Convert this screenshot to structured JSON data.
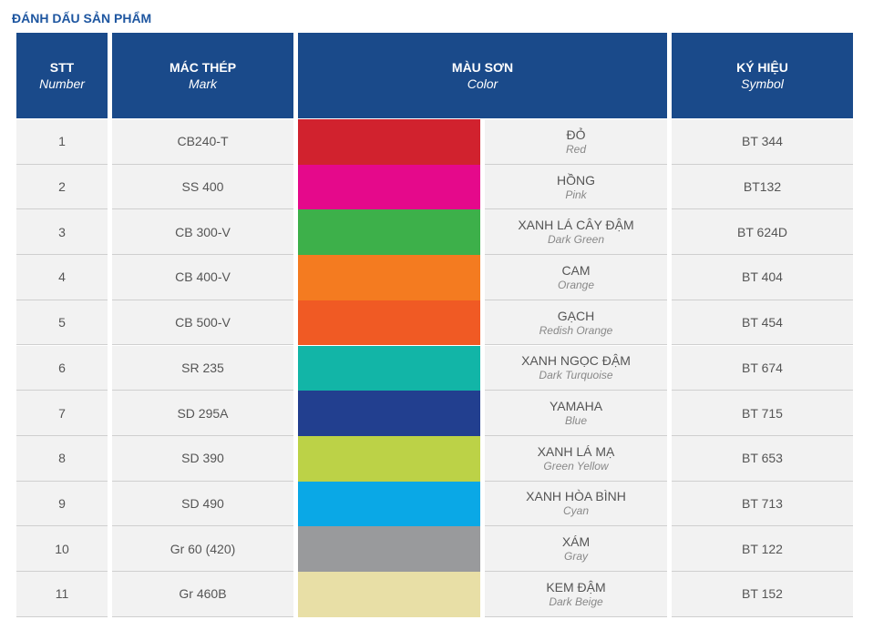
{
  "title": "ĐÁNH DẤU SẢN PHẨM",
  "table": {
    "header": [
      {
        "title": "STT",
        "subtitle": "Number"
      },
      {
        "title": "MÁC THÉP",
        "subtitle": "Mark"
      },
      {
        "title": "MÀU SƠN",
        "subtitle": "Color"
      },
      {
        "title": "KÝ HIỆU",
        "subtitle": "Symbol"
      }
    ],
    "rows": [
      {
        "stt": 1,
        "mark": "CB240-T",
        "color": "#d1222e",
        "color_name": "ĐỎ",
        "color_name_en": "Red",
        "symbol": "BT 344"
      },
      {
        "stt": 2,
        "mark": "SS 400",
        "color": "#e5098b",
        "color_name": "HỒNG",
        "color_name_en": "Pink",
        "symbol": "BT132"
      },
      {
        "stt": 3,
        "mark": "CB 300-V",
        "color": "#3db04a",
        "color_name": "XANH LÁ CÂY ĐẬM",
        "color_name_en": "Dark Green",
        "symbol": "BT 624D"
      },
      {
        "stt": 4,
        "mark": "CB 400-V",
        "color": "#f47b20",
        "color_name": "CAM",
        "color_name_en": "Orange",
        "symbol": "BT 404"
      },
      {
        "stt": 5,
        "mark": "CB 500-V",
        "color": "#f05a24",
        "color_name": "GẠCH",
        "color_name_en": "Redish Orange",
        "symbol": "BT 454"
      },
      {
        "stt": 6,
        "mark": "SR 235",
        "color": "#12b5a7",
        "color_name": "XANH NGỌC ĐẬM",
        "color_name_en": "Dark Turquoise",
        "symbol": "BT 674"
      },
      {
        "stt": 7,
        "mark": "SD 295A",
        "color": "#223f8f",
        "color_name": "YAMAHA",
        "color_name_en": "Blue",
        "symbol": "BT 715"
      },
      {
        "stt": 8,
        "mark": "SD 390",
        "color": "#bcd247",
        "color_name": "XANH LÁ MẠ",
        "color_name_en": "Green Yellow",
        "symbol": "BT 653"
      },
      {
        "stt": 9,
        "mark": "SD 490",
        "color": "#0aa8e6",
        "color_name": "XANH HÒA BÌNH",
        "color_name_en": "Cyan",
        "symbol": "BT 713"
      },
      {
        "stt": 10,
        "mark": "Gr 60 (420)",
        "color": "#999a9c",
        "color_name": "XÁM",
        "color_name_en": "Gray",
        "symbol": "BT 122"
      },
      {
        "stt": 11,
        "mark": "Gr 460B",
        "color": "#e8dfa6",
        "color_name": "KEM ĐẬM",
        "color_name_en": "Dark Beige",
        "symbol": "BT 152"
      }
    ]
  }
}
